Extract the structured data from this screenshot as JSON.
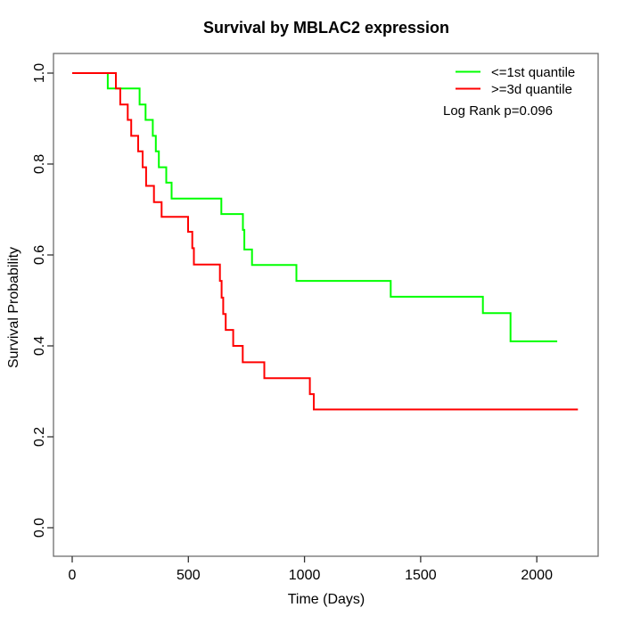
{
  "title": "Survival by MBLAC2 expression",
  "chart_data": {
    "type": "line",
    "subtype": "kaplan-meier-step",
    "title": "Survival by MBLAC2 expression",
    "xlabel": "Time (Days)",
    "ylabel": "Survival Probability",
    "xlim": [
      -80,
      2265
    ],
    "ylim": [
      -0.06,
      1.04
    ],
    "grid": false,
    "x_ticks": [
      0,
      500,
      1000,
      1500,
      2000
    ],
    "x_tick_labels": [
      "0",
      "500",
      "1000",
      "1500",
      "2000"
    ],
    "y_ticks": [
      0.0,
      0.2,
      0.4,
      0.6,
      0.8,
      1.0
    ],
    "y_tick_labels": [
      "0.0",
      "0.2",
      "0.4",
      "0.6",
      "0.8",
      "1.0"
    ],
    "annotation": "Log Rank p=0.096",
    "legend": {
      "position": "top-right",
      "entries": [
        {
          "label": "<=1st quantile",
          "color": "#00ff00"
        },
        {
          "label": ">=3d quantile",
          "color": "#ff0000"
        }
      ]
    },
    "series": [
      {
        "name": "<=1st quantile",
        "color": "#00ff00",
        "end_time": 2088,
        "steps": [
          [
            0,
            1.0
          ],
          [
            153,
            0.966
          ],
          [
            290,
            0.931
          ],
          [
            316,
            0.897
          ],
          [
            347,
            0.862
          ],
          [
            360,
            0.828
          ],
          [
            373,
            0.793
          ],
          [
            405,
            0.759
          ],
          [
            428,
            0.724
          ],
          [
            642,
            0.69
          ],
          [
            735,
            0.655
          ],
          [
            741,
            0.612
          ],
          [
            774,
            0.578
          ],
          [
            965,
            0.543
          ],
          [
            1371,
            0.508
          ],
          [
            1768,
            0.472
          ],
          [
            1887,
            0.41
          ]
        ]
      },
      {
        "name": ">=3d quantile",
        "color": "#ff0000",
        "end_time": 2177,
        "steps": [
          [
            0,
            1.0
          ],
          [
            188,
            0.966
          ],
          [
            207,
            0.931
          ],
          [
            239,
            0.897
          ],
          [
            254,
            0.862
          ],
          [
            284,
            0.828
          ],
          [
            303,
            0.793
          ],
          [
            318,
            0.752
          ],
          [
            352,
            0.716
          ],
          [
            385,
            0.684
          ],
          [
            499,
            0.651
          ],
          [
            517,
            0.615
          ],
          [
            524,
            0.579
          ],
          [
            636,
            0.543
          ],
          [
            643,
            0.506
          ],
          [
            650,
            0.47
          ],
          [
            661,
            0.435
          ],
          [
            693,
            0.4
          ],
          [
            734,
            0.364
          ],
          [
            827,
            0.329
          ],
          [
            1023,
            0.294
          ],
          [
            1040,
            0.26
          ]
        ]
      }
    ]
  }
}
